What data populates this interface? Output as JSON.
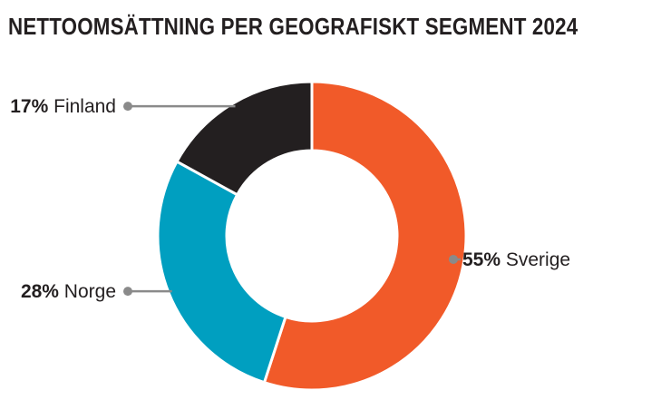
{
  "chart_data": {
    "type": "pie",
    "variant": "donut",
    "title": "NETTOOMSÄTTNING PER GEOGRAFISKT SEGMENT 2024",
    "unit": "%",
    "slices": [
      {
        "label": "Sverige",
        "value": 55,
        "display": "55%",
        "color": "#f15a29",
        "label_side": "right"
      },
      {
        "label": "Norge",
        "value": 28,
        "display": "28%",
        "color": "#009fc0",
        "label_side": "left"
      },
      {
        "label": "Finland",
        "value": 17,
        "display": "17%",
        "color": "#231f20",
        "label_side": "left"
      }
    ],
    "start": "top",
    "direction": "clockwise",
    "legend": "none",
    "leader_line_color": "#8a8a8a"
  }
}
